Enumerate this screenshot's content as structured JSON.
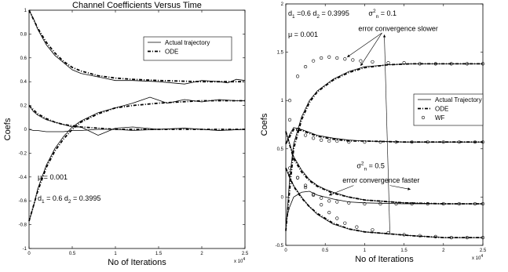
{
  "chart_data": [
    {
      "type": "line",
      "title": "Channel Coefficients Versus Time",
      "xlabel": "No of Iterations",
      "ylabel": "Coefs",
      "x_multiplier": "x 10",
      "x_multiplier_exp": "4",
      "xlim": [
        0,
        2.5
      ],
      "ylim": [
        -1,
        1
      ],
      "grid": false,
      "legend_position": "top-right",
      "x_ticks": [
        "0",
        "0.5",
        "1",
        "1.5",
        "2",
        "2.5"
      ],
      "y_ticks": [
        "-1",
        "-0.8",
        "-0.6",
        "-0.4",
        "-0.2",
        "0",
        "0.2",
        "0.4",
        "0.6",
        "0.8",
        "1"
      ],
      "series": [
        {
          "name": "Actual trajectory",
          "style": "solid",
          "curves": [
            {
              "x": [
                0,
                0.05,
                0.1,
                0.2,
                0.3,
                0.4,
                0.5,
                0.6,
                0.8,
                1.0,
                1.2,
                1.5,
                1.8,
                2.0,
                2.2,
                2.3,
                2.4,
                2.5
              ],
              "y": [
                1.0,
                0.93,
                0.84,
                0.71,
                0.62,
                0.56,
                0.5,
                0.47,
                0.44,
                0.41,
                0.41,
                0.4,
                0.38,
                0.41,
                0.4,
                0.39,
                0.42,
                0.41
              ]
            },
            {
              "x": [
                0,
                0.05,
                0.1,
                0.2,
                0.3,
                0.4,
                0.5,
                0.6,
                0.8,
                1.0,
                1.2,
                1.4,
                1.6,
                1.8,
                2.0,
                2.2,
                2.4,
                2.5
              ],
              "y": [
                -0.77,
                -0.65,
                -0.5,
                -0.3,
                -0.16,
                -0.06,
                0.02,
                0.07,
                0.14,
                0.18,
                0.22,
                0.27,
                0.22,
                0.25,
                0.23,
                0.25,
                0.24,
                0.24
              ]
            },
            {
              "x": [
                0,
                0.05,
                0.1,
                0.2,
                0.3,
                0.4,
                0.5,
                0.6,
                0.8,
                1.0,
                1.2,
                1.5,
                1.8,
                2.0,
                2.2,
                2.5
              ],
              "y": [
                0.2,
                0.15,
                0.12,
                0.08,
                0.06,
                0.04,
                0.02,
                0.02,
                -0.05,
                0.01,
                0.02,
                0.0,
                0.01,
                0.0,
                -0.01,
                0.0
              ]
            },
            {
              "x": [
                0,
                0.05,
                0.1,
                0.2,
                0.3,
                0.4,
                0.5,
                0.6,
                0.8,
                1.0,
                1.2,
                1.5,
                1.8,
                2.0,
                2.2,
                2.5
              ],
              "y": [
                0.0,
                -0.01,
                -0.01,
                -0.02,
                -0.02,
                -0.02,
                -0.01,
                -0.01,
                0.0,
                0.0,
                -0.01,
                0.0,
                0.01,
                0.0,
                -0.01,
                0.0
              ]
            }
          ]
        },
        {
          "name": "ODE",
          "style": "dash-dot",
          "curves": [
            {
              "x": [
                0,
                0.1,
                0.2,
                0.3,
                0.4,
                0.5,
                0.6,
                0.8,
                1.0,
                1.2,
                1.5,
                2.0,
                2.5
              ],
              "y": [
                1.0,
                0.85,
                0.73,
                0.64,
                0.57,
                0.52,
                0.49,
                0.45,
                0.43,
                0.42,
                0.41,
                0.4,
                0.4
              ]
            },
            {
              "x": [
                0,
                0.1,
                0.2,
                0.3,
                0.4,
                0.5,
                0.6,
                0.8,
                1.0,
                1.2,
                1.5,
                2.0,
                2.5
              ],
              "y": [
                -0.77,
                -0.52,
                -0.32,
                -0.18,
                -0.08,
                0.0,
                0.06,
                0.13,
                0.18,
                0.2,
                0.22,
                0.24,
                0.24
              ]
            },
            {
              "x": [
                0,
                0.1,
                0.2,
                0.3,
                0.4,
                0.5,
                0.6,
                0.8,
                1.0,
                1.5,
                2.0,
                2.5
              ],
              "y": [
                0.2,
                0.13,
                0.09,
                0.06,
                0.04,
                0.03,
                0.02,
                0.01,
                0.0,
                0.0,
                0.0,
                0.0
              ]
            }
          ]
        }
      ],
      "annotations": [
        {
          "text": "μ = 0.001",
          "at": [
            0.1,
            -0.42
          ]
        },
        {
          "text": "d",
          "sub": "1",
          "text2": " = 0.6 d",
          "sub2": "2",
          "text3": " = 0.3995",
          "at": [
            0.1,
            -0.6
          ]
        }
      ]
    },
    {
      "type": "line",
      "title": "",
      "xlabel": "No of Iterations",
      "ylabel": "Coefs",
      "x_multiplier": "x 10",
      "x_multiplier_exp": "4",
      "xlim": [
        0,
        2.5
      ],
      "ylim": [
        -0.5,
        2
      ],
      "grid": false,
      "legend_position": "center-right",
      "x_ticks": [
        "0",
        "0.5",
        "1",
        "1.5",
        "2",
        "2.5"
      ],
      "y_ticks": [
        "-0.5",
        "0",
        "0.5",
        "1",
        "1.5",
        "2"
      ],
      "series": [
        {
          "name": "Actual Trajectory",
          "style": "solid",
          "curves": [
            {
              "x": [
                0,
                0.05,
                0.1,
                0.2,
                0.3,
                0.4,
                0.6,
                0.8,
                1.0,
                1.3,
                1.6,
                2.0,
                2.5
              ],
              "y": [
                -0.35,
                0.2,
                0.55,
                0.83,
                1.0,
                1.1,
                1.22,
                1.3,
                1.35,
                1.37,
                1.38,
                1.38,
                1.38
              ]
            },
            {
              "x": [
                0,
                0.05,
                0.1,
                0.2,
                0.3,
                0.4,
                0.6,
                0.8,
                1.0,
                1.5,
                2.0,
                2.5
              ],
              "y": [
                0.55,
                0.65,
                0.72,
                0.7,
                0.67,
                0.64,
                0.61,
                0.59,
                0.58,
                0.57,
                0.57,
                0.57
              ]
            },
            {
              "x": [
                0,
                0.05,
                0.1,
                0.2,
                0.3,
                0.4,
                0.5,
                0.6,
                0.8,
                1.0,
                1.5,
                2.0,
                2.5
              ],
              "y": [
                0.68,
                0.55,
                0.42,
                0.28,
                0.18,
                0.12,
                0.08,
                0.05,
                0.0,
                -0.03,
                -0.06,
                -0.07,
                -0.07
              ]
            },
            {
              "x": [
                0,
                0.05,
                0.1,
                0.2,
                0.3,
                0.4,
                0.6,
                0.8,
                1.0,
                1.3,
                1.6,
                2.0,
                2.5
              ],
              "y": [
                0.3,
                0.2,
                0.12,
                0.0,
                -0.1,
                -0.18,
                -0.28,
                -0.33,
                -0.36,
                -0.38,
                -0.4,
                -0.42,
                -0.42
              ]
            },
            {
              "x": [
                0,
                0.05,
                0.1,
                0.2,
                0.3,
                0.4,
                0.6,
                0.8,
                1.0,
                1.5,
                2.0,
                2.5
              ],
              "y": [
                -0.25,
                -0.1,
                0.0,
                0.05,
                0.06,
                0.02,
                -0.02,
                -0.05,
                -0.06,
                -0.07,
                -0.07,
                -0.07
              ]
            }
          ]
        },
        {
          "name": "ODE",
          "style": "dash-dot",
          "curves": [
            {
              "x": [
                0,
                0.1,
                0.2,
                0.3,
                0.4,
                0.6,
                0.8,
                1.0,
                1.3,
                1.6,
                2.0,
                2.5
              ],
              "y": [
                -0.35,
                0.5,
                0.8,
                0.98,
                1.09,
                1.21,
                1.29,
                1.34,
                1.37,
                1.38,
                1.38,
                1.38
              ]
            },
            {
              "x": [
                0,
                0.1,
                0.2,
                0.3,
                0.4,
                0.6,
                0.8,
                1.0,
                1.5,
                2.0,
                2.5
              ],
              "y": [
                0.55,
                0.7,
                0.69,
                0.66,
                0.63,
                0.6,
                0.58,
                0.58,
                0.57,
                0.57,
                0.57
              ]
            },
            {
              "x": [
                0,
                0.1,
                0.2,
                0.3,
                0.4,
                0.6,
                0.8,
                1.0,
                1.5,
                2.0,
                2.5
              ],
              "y": [
                0.68,
                0.4,
                0.26,
                0.17,
                0.11,
                0.04,
                0.0,
                -0.03,
                -0.06,
                -0.07,
                -0.07
              ]
            },
            {
              "x": [
                0,
                0.1,
                0.2,
                0.3,
                0.4,
                0.6,
                0.8,
                1.0,
                1.3,
                1.6,
                2.0,
                2.5
              ],
              "y": [
                0.3,
                0.11,
                -0.01,
                -0.1,
                -0.17,
                -0.27,
                -0.33,
                -0.36,
                -0.38,
                -0.4,
                -0.42,
                -0.42
              ]
            }
          ]
        },
        {
          "name": "WF",
          "style": "circles",
          "curves": [
            {
              "x": [
                0.05,
                0.15,
                0.25,
                0.35,
                0.45,
                0.55,
                0.65,
                0.75,
                0.85,
                0.95,
                1.1,
                1.3,
                1.5,
                1.7,
                1.9,
                2.1,
                2.3,
                2.5
              ],
              "y": [
                1.0,
                1.25,
                1.35,
                1.41,
                1.44,
                1.45,
                1.44,
                1.43,
                1.42,
                1.41,
                1.4,
                1.39,
                1.39,
                1.38,
                1.38,
                1.38,
                1.38,
                1.38
              ]
            },
            {
              "x": [
                0.05,
                0.15,
                0.25,
                0.35,
                0.45,
                0.55,
                0.65,
                0.75,
                0.9,
                1.1,
                1.3,
                1.5,
                1.7,
                1.9,
                2.1,
                2.3,
                2.5
              ],
              "y": [
                0.25,
                0.2,
                0.12,
                0.02,
                -0.08,
                -0.16,
                -0.22,
                -0.27,
                -0.31,
                -0.34,
                -0.37,
                -0.39,
                -0.4,
                -0.41,
                -0.42,
                -0.42,
                -0.42
              ]
            },
            {
              "x": [
                0.05,
                0.15,
                0.25,
                0.35,
                0.45,
                0.55,
                0.65,
                0.8,
                1.0,
                1.2,
                1.4,
                1.6,
                1.8,
                2.0,
                2.2,
                2.4,
                2.5
              ],
              "y": [
                0.8,
                0.7,
                0.64,
                0.61,
                0.59,
                0.58,
                0.58,
                0.57,
                0.57,
                0.57,
                0.57,
                0.57,
                0.57,
                0.57,
                0.57,
                0.57,
                0.57
              ]
            },
            {
              "x": [
                0.05,
                0.15,
                0.25,
                0.35,
                0.45,
                0.55,
                0.65,
                0.8,
                1.0,
                1.2,
                1.4,
                1.6,
                1.8,
                2.0,
                2.2,
                2.4,
                2.5
              ],
              "y": [
                0.3,
                0.2,
                0.1,
                0.03,
                -0.01,
                -0.04,
                -0.05,
                -0.06,
                -0.07,
                -0.07,
                -0.07,
                -0.07,
                -0.07,
                -0.07,
                -0.07,
                -0.07,
                -0.07
              ]
            }
          ]
        }
      ],
      "annotations": [
        {
          "text": "d",
          "sub": "1",
          "text2": " =0.6 d",
          "sub2": "2",
          "text3": " = 0.3995",
          "at": [
            0.03,
            1.88
          ]
        },
        {
          "text": "μ = 0.001",
          "at": [
            0.03,
            1.66
          ]
        },
        {
          "text": "σ",
          "sub": "n",
          "sup": "2",
          "text2": " = 0.1",
          "at": [
            1.05,
            1.88
          ]
        },
        {
          "text": "error convergence slower",
          "at": [
            0.92,
            1.72
          ]
        },
        {
          "text": "σ",
          "sub": "n",
          "sup": "2",
          "text2": " = 0.5",
          "at": [
            0.9,
            0.3
          ]
        },
        {
          "text": "error convergence faster",
          "at": [
            0.72,
            0.15
          ]
        }
      ]
    }
  ]
}
